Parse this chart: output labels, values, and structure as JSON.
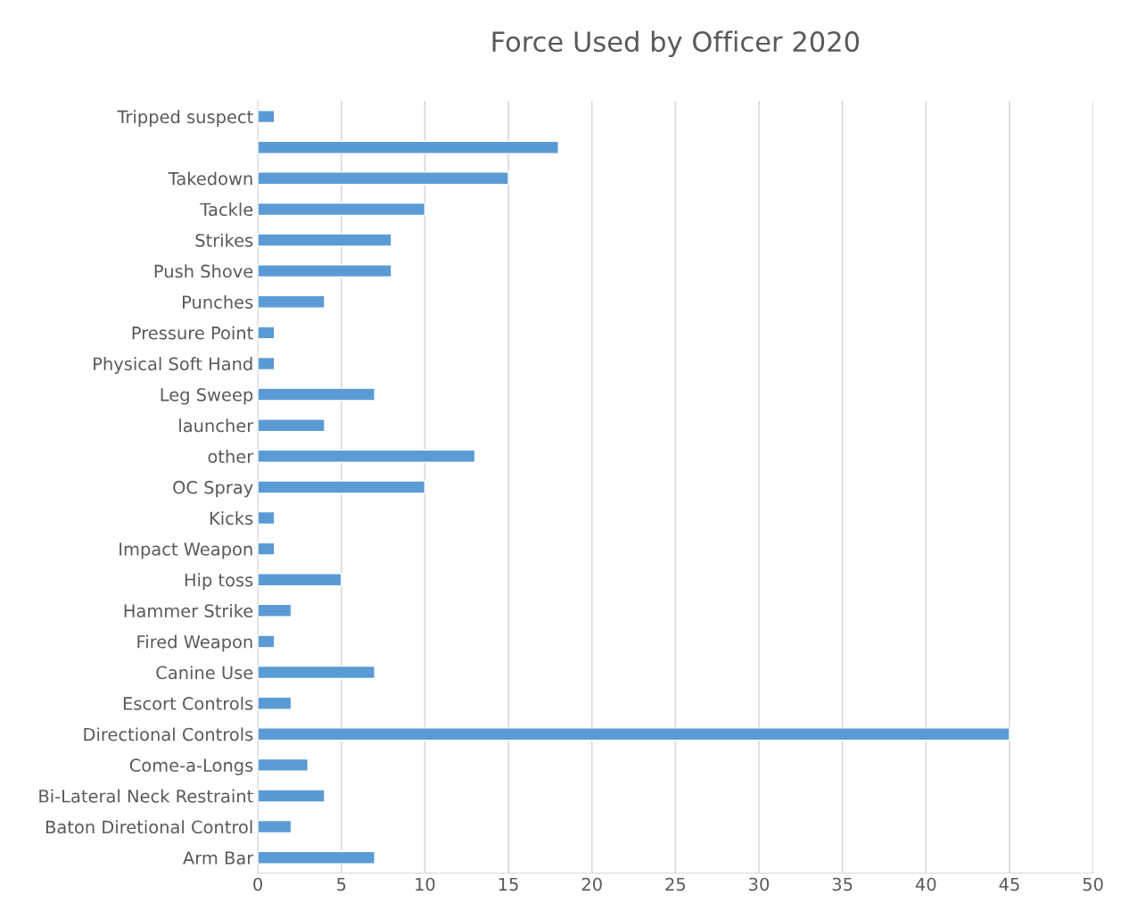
{
  "chart_data": {
    "type": "bar",
    "orientation": "horizontal",
    "title": "Force Used by Officer 2020",
    "categories": [
      "Tripped suspect",
      null,
      "Takedown",
      "Tackle",
      "Strikes",
      "Push Shove",
      "Punches",
      "Pressure Point",
      "Physical Soft Hand",
      "Leg Sweep",
      "launcher",
      "other",
      "OC Spray",
      "Kicks",
      "Impact Weapon",
      "Hip toss",
      "Hammer Strike",
      "Fired Weapon",
      "Canine Use",
      "Escort Controls",
      "Directional Controls",
      "Come-a-Longs",
      "Bi-Lateral Neck Restraint",
      "Baton Diretional Control",
      "Arm Bar"
    ],
    "values": [
      1,
      18,
      15,
      10,
      8,
      8,
      4,
      1,
      1,
      7,
      4,
      13,
      10,
      1,
      1,
      5,
      2,
      1,
      7,
      2,
      45,
      3,
      4,
      2,
      7
    ],
    "color": "#5b9bd5",
    "xlim": [
      0,
      50
    ],
    "xticks": [
      0,
      5,
      10,
      15,
      20,
      25,
      30,
      35,
      40,
      45,
      50
    ],
    "grid": "x"
  }
}
